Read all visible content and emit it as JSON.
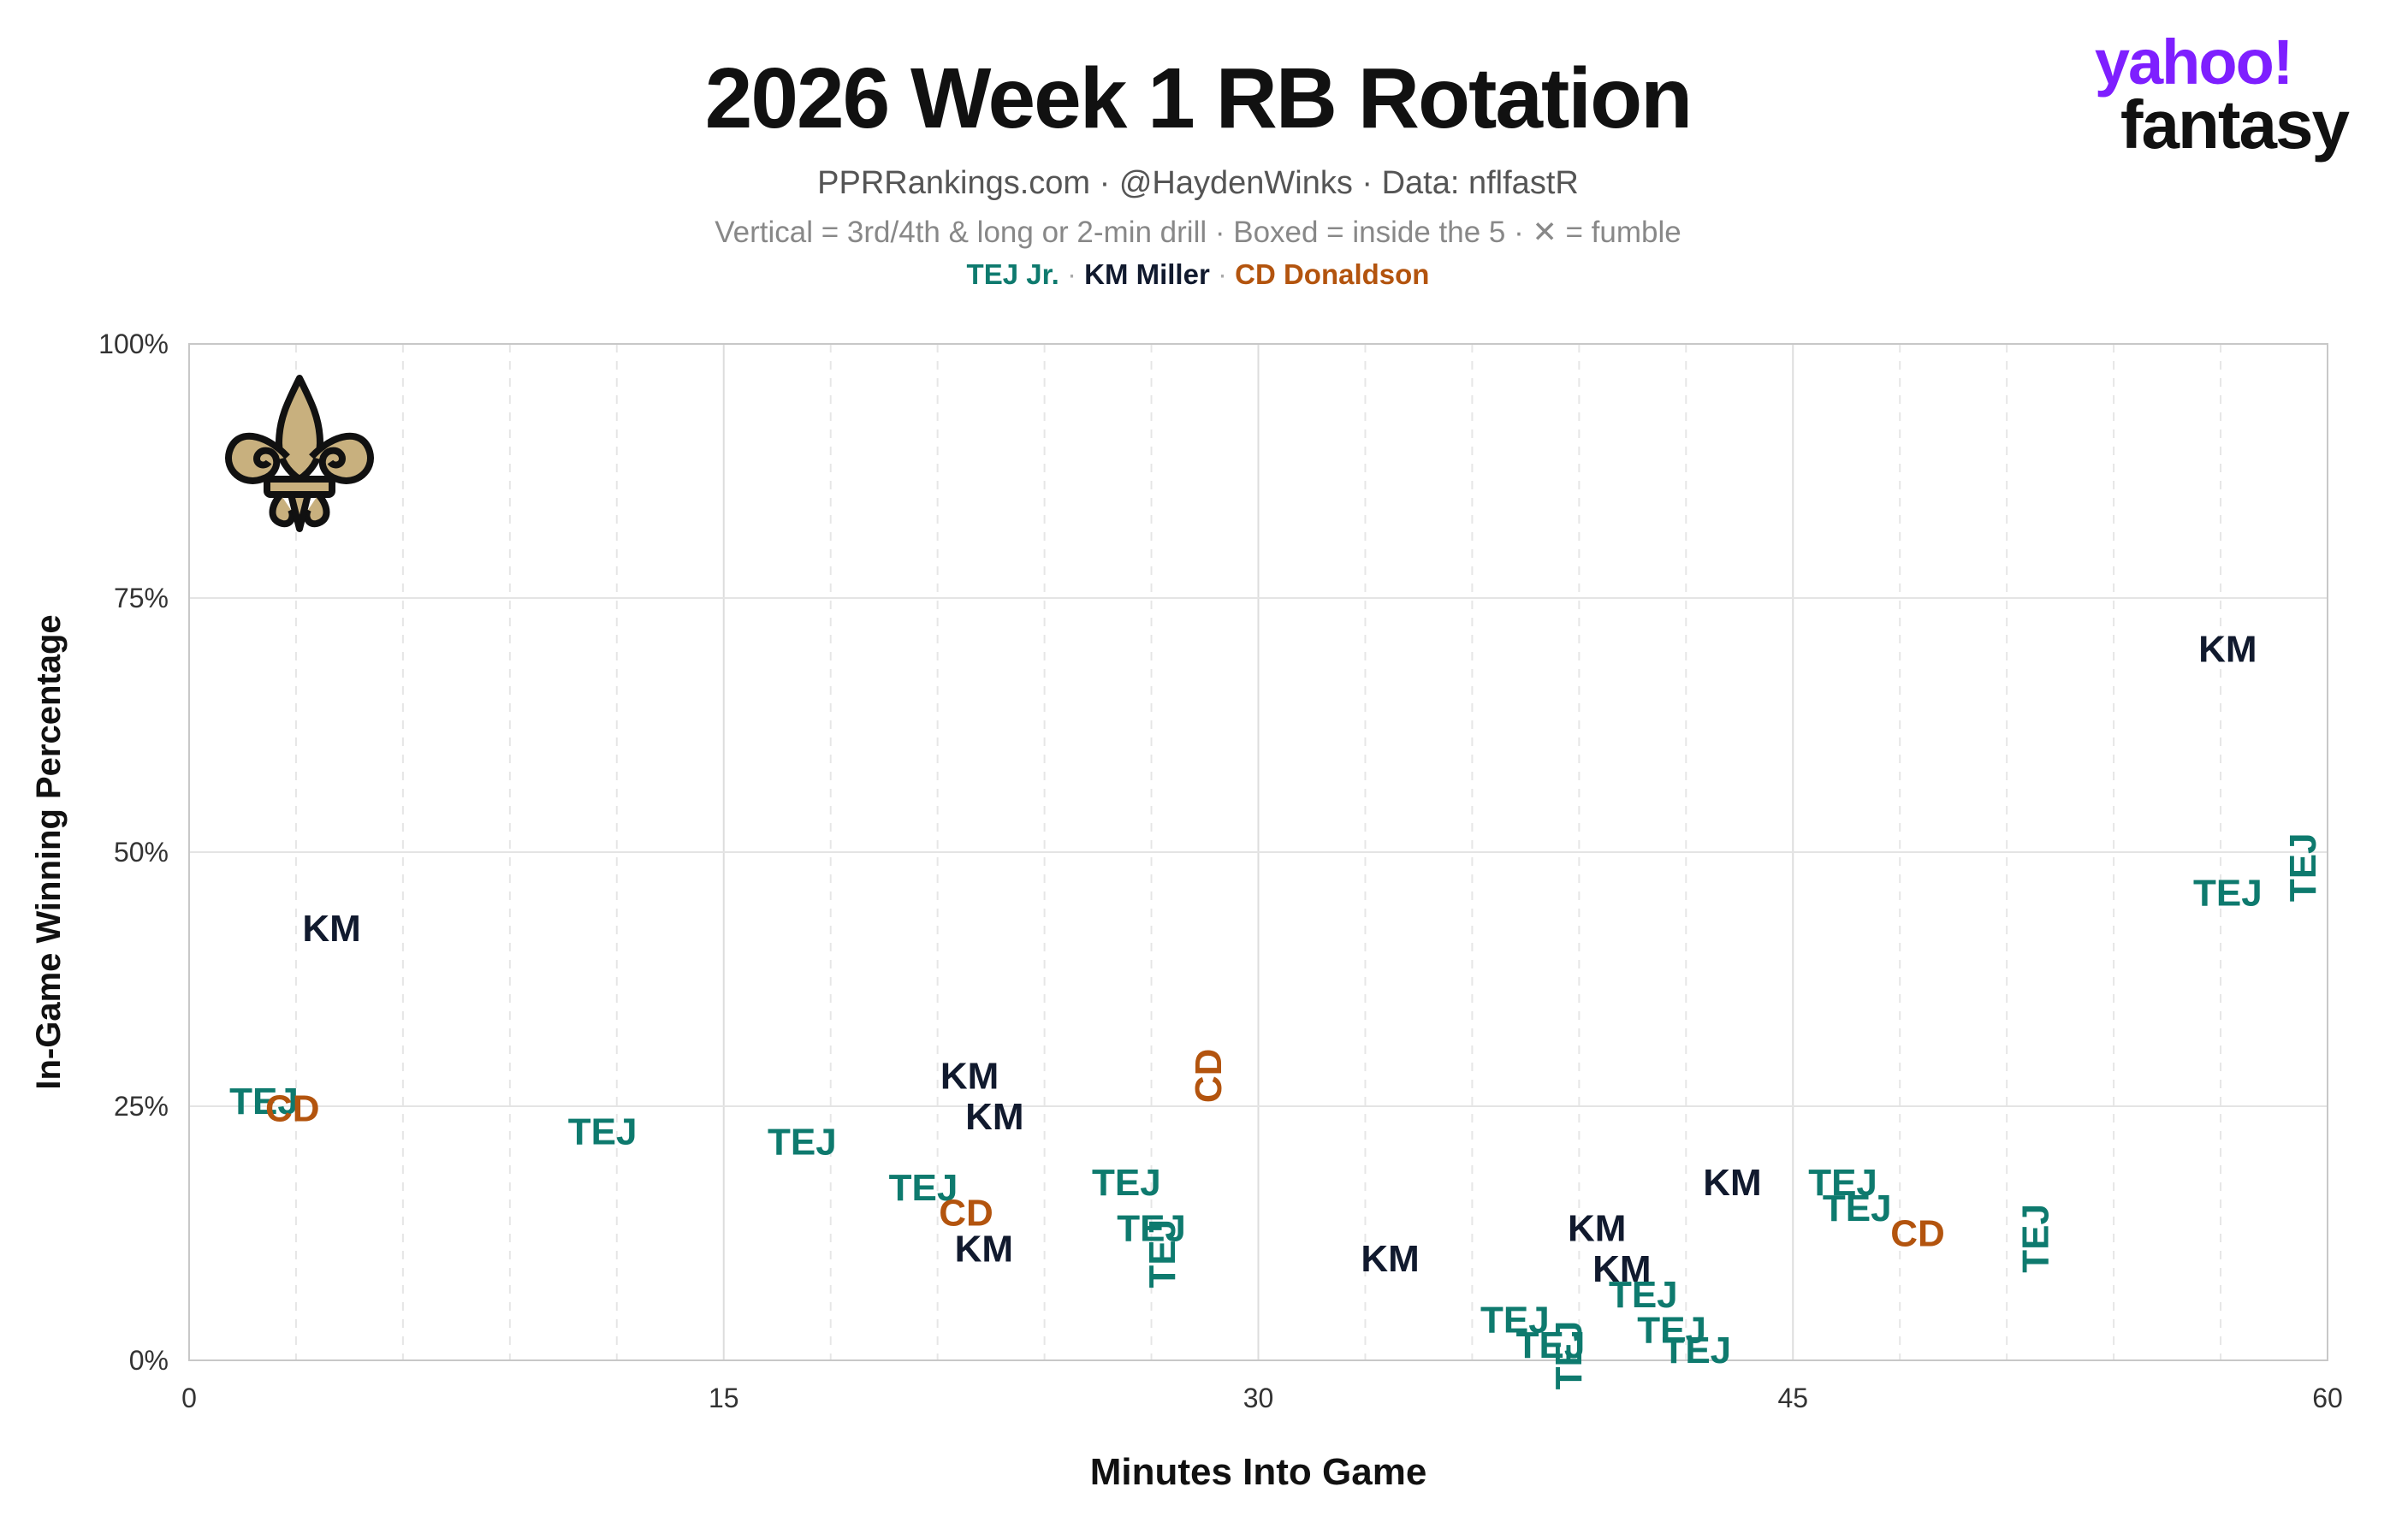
{
  "header": {
    "title": "2026 Week 1 RB Rotation",
    "subtitle": "PPRRankings.com · @HaydenWinks · Data: nflfastR",
    "note": "Vertical = 3rd/4th & long or 2-min drill · Boxed = inside the 5 · ✕ = fumble"
  },
  "legend": {
    "items": [
      {
        "label": "TEJ Jr.",
        "color": "#0e7a6e"
      },
      {
        "label": "KM Miller",
        "color": "#111a2e"
      },
      {
        "label": "CD Donaldson",
        "color": "#b3540e"
      }
    ],
    "separator": "·"
  },
  "brand": {
    "line1": "yahoo!",
    "line2": "fantasy"
  },
  "team_logo": {
    "icon": "saints-fleur-de-lis-icon",
    "fill": "#c8b07e",
    "stroke": "#111111"
  },
  "chart_data": {
    "type": "scatter",
    "xlabel": "Minutes Into Game",
    "ylabel": "In-Game Winning Percentage",
    "xlim": [
      0,
      60
    ],
    "ylim": [
      0,
      100
    ],
    "xticks": [
      0,
      15,
      30,
      45,
      60
    ],
    "yticks": [
      0,
      25,
      50,
      75,
      100
    ],
    "ytick_labels": [
      "0%",
      "25%",
      "50%",
      "75%",
      "100%"
    ],
    "grid": true,
    "colors": {
      "TEJ": "#0e7a6e",
      "KM": "#111a2e",
      "CD": "#b3540e"
    },
    "points": [
      {
        "label": "TEJ",
        "x": 2.1,
        "y": 25.5,
        "vertical": false
      },
      {
        "label": "CD",
        "x": 2.9,
        "y": 24.8,
        "vertical": false
      },
      {
        "label": "KM",
        "x": 4.0,
        "y": 42.5,
        "vertical": false
      },
      {
        "label": "TEJ",
        "x": 11.6,
        "y": 22.5,
        "vertical": false
      },
      {
        "label": "TEJ",
        "x": 17.2,
        "y": 21.5,
        "vertical": false
      },
      {
        "label": "TEJ",
        "x": 20.6,
        "y": 17.0,
        "vertical": false
      },
      {
        "label": "CD",
        "x": 21.8,
        "y": 14.5,
        "vertical": false
      },
      {
        "label": "KM",
        "x": 21.9,
        "y": 28.0,
        "vertical": false
      },
      {
        "label": "KM",
        "x": 22.6,
        "y": 24.0,
        "vertical": false
      },
      {
        "label": "KM",
        "x": 22.3,
        "y": 11.0,
        "vertical": false
      },
      {
        "label": "TEJ",
        "x": 26.3,
        "y": 17.5,
        "vertical": false
      },
      {
        "label": "TEJ",
        "x": 27.0,
        "y": 13.0,
        "vertical": false
      },
      {
        "label": "TEJ",
        "x": 27.3,
        "y": 10.5,
        "vertical": true
      },
      {
        "label": "CD",
        "x": 28.6,
        "y": 28.0,
        "vertical": true
      },
      {
        "label": "KM",
        "x": 33.7,
        "y": 10.0,
        "vertical": false
      },
      {
        "label": "TEJ",
        "x": 37.2,
        "y": 4.0,
        "vertical": false
      },
      {
        "label": "TEJ",
        "x": 38.2,
        "y": 1.5,
        "vertical": false
      },
      {
        "label": "TEJ",
        "x": 38.7,
        "y": 0.5,
        "vertical": true
      },
      {
        "label": "KM",
        "x": 39.5,
        "y": 13.0,
        "vertical": false
      },
      {
        "label": "KM",
        "x": 40.2,
        "y": 9.0,
        "vertical": false
      },
      {
        "label": "TEJ",
        "x": 40.8,
        "y": 6.5,
        "vertical": false
      },
      {
        "label": "TEJ",
        "x": 41.6,
        "y": 3.0,
        "vertical": false
      },
      {
        "label": "TEJ",
        "x": 42.3,
        "y": 1.0,
        "vertical": false
      },
      {
        "label": "KM",
        "x": 43.3,
        "y": 17.5,
        "vertical": false
      },
      {
        "label": "TEJ",
        "x": 46.4,
        "y": 17.5,
        "vertical": false
      },
      {
        "label": "TEJ",
        "x": 46.8,
        "y": 15.0,
        "vertical": false
      },
      {
        "label": "CD",
        "x": 48.5,
        "y": 12.5,
        "vertical": false
      },
      {
        "label": "TEJ",
        "x": 51.8,
        "y": 12.0,
        "vertical": true
      },
      {
        "label": "KM",
        "x": 57.2,
        "y": 70.0,
        "vertical": false
      },
      {
        "label": "TEJ",
        "x": 57.2,
        "y": 46.0,
        "vertical": false
      },
      {
        "label": "TEJ",
        "x": 59.3,
        "y": 48.5,
        "vertical": true
      }
    ]
  }
}
